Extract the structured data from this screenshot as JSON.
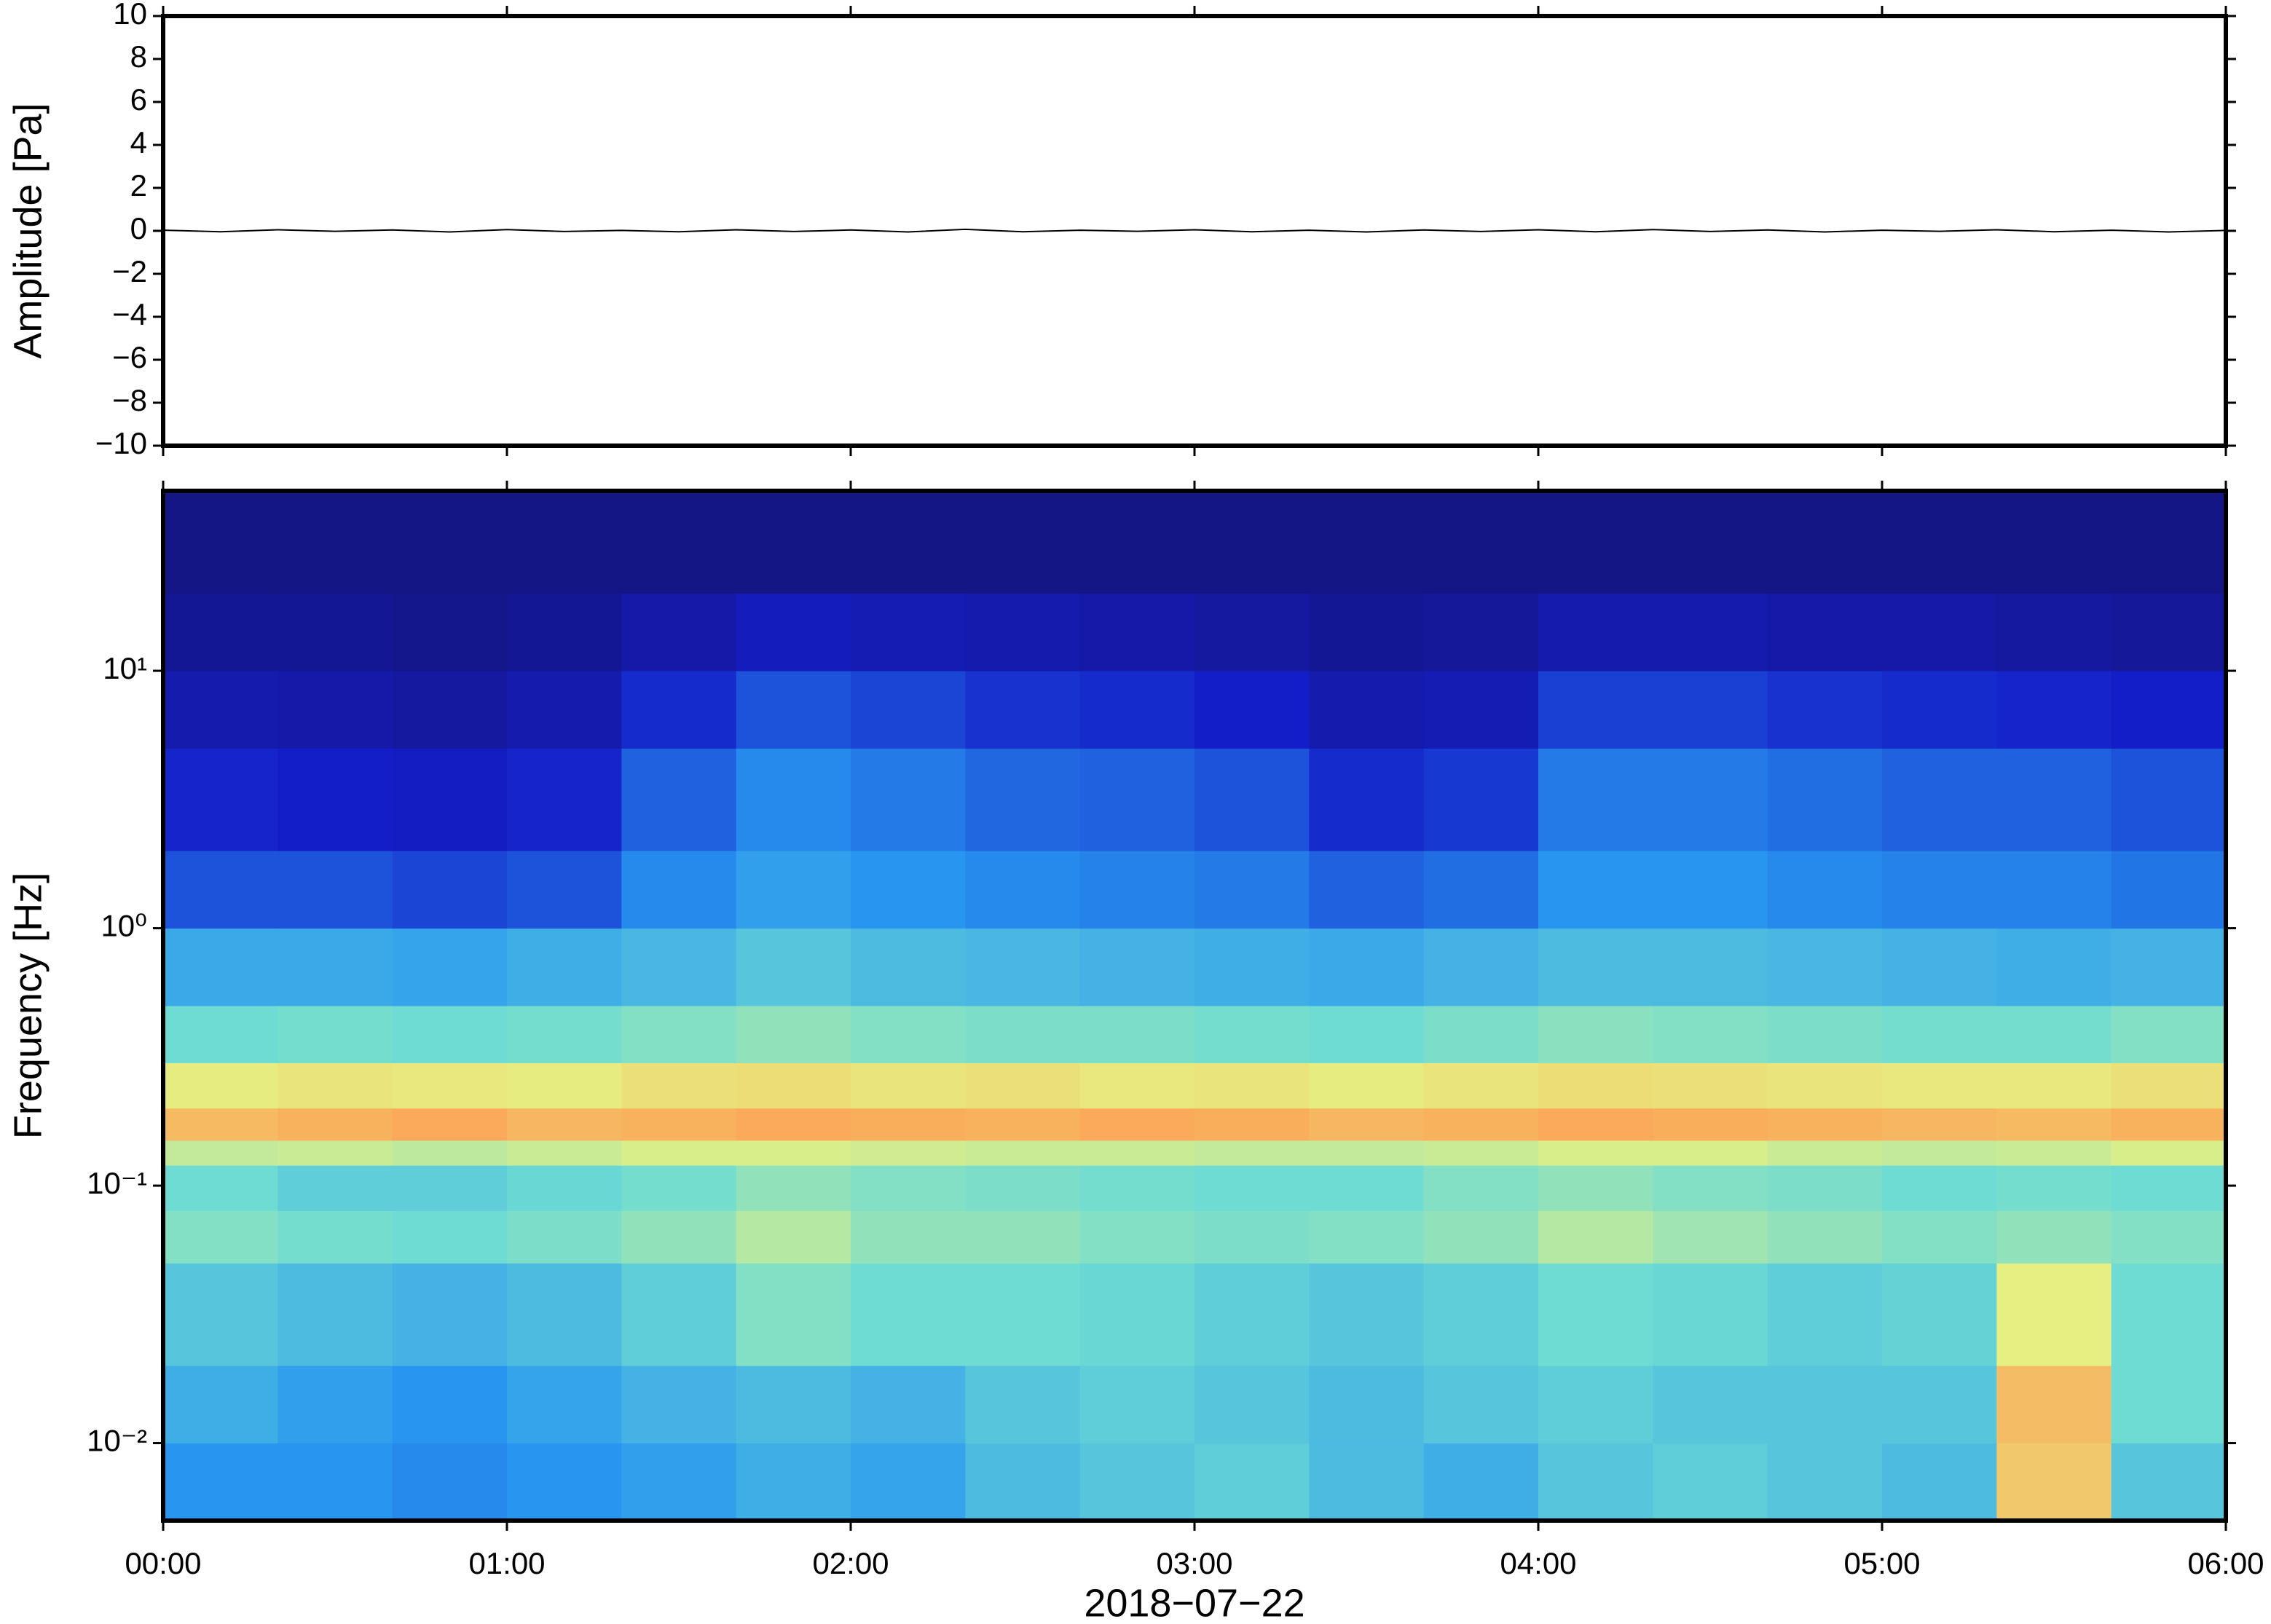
{
  "chart_data": [
    {
      "type": "line",
      "y_label": "Amplitude [Pa]",
      "x": [
        0,
        10,
        20,
        30,
        40,
        50,
        60,
        70,
        80,
        90,
        100,
        110,
        120,
        130,
        140,
        150,
        160,
        170,
        180,
        190,
        200,
        210,
        220,
        230,
        240,
        250,
        260,
        270,
        280,
        290,
        300,
        310,
        320,
        330,
        340,
        350,
        360
      ],
      "series": [
        {
          "color": "#000000",
          "values": [
            0.03,
            -0.04,
            0.05,
            -0.02,
            0.04,
            -0.05,
            0.06,
            -0.03,
            0.02,
            -0.04,
            0.05,
            -0.03,
            0.04,
            -0.05,
            0.07,
            -0.04,
            0.03,
            -0.02,
            0.05,
            -0.04,
            0.03,
            -0.05,
            0.04,
            -0.03,
            0.05,
            -0.04,
            0.06,
            -0.03,
            0.04,
            -0.05,
            0.03,
            -0.02,
            0.05,
            -0.04,
            0.03,
            -0.05,
            0.02
          ]
        }
      ],
      "xlim": [
        0,
        360
      ],
      "xticks": [
        {
          "value": 0,
          "label": "00:00"
        },
        {
          "value": 60,
          "label": "01:00"
        },
        {
          "value": 120,
          "label": "02:00"
        },
        {
          "value": 180,
          "label": "03:00"
        },
        {
          "value": 240,
          "label": "04:00"
        },
        {
          "value": 300,
          "label": "05:00"
        },
        {
          "value": 360,
          "label": "06:00"
        }
      ],
      "ylim": [
        -10,
        10
      ],
      "yticks": [
        {
          "value": -10,
          "label": "−10"
        },
        {
          "value": -8,
          "label": "−8"
        },
        {
          "value": -6,
          "label": "−6"
        },
        {
          "value": -4,
          "label": "−4"
        },
        {
          "value": -2,
          "label": "−2"
        },
        0,
        2,
        4,
        6,
        8,
        10
      ]
    },
    {
      "type": "heatmap",
      "y_label": "Frequency [Hz]",
      "x_label": "2018−07−22",
      "colormap": "jet",
      "log_y": true,
      "x_bins": [
        0,
        20,
        40,
        60,
        80,
        100,
        120,
        140,
        160,
        180,
        200,
        220,
        240,
        260,
        280,
        300,
        320,
        340,
        360
      ],
      "y_bins": [
        0.005,
        0.01,
        0.02,
        0.05,
        0.08,
        0.12,
        0.15,
        0.2,
        0.3,
        0.5,
        1,
        2,
        5,
        10,
        20,
        50
      ],
      "z": [
        [
          0.3,
          0.3,
          0.28,
          0.3,
          0.32,
          0.35,
          0.33,
          0.38,
          0.4,
          0.42,
          0.38,
          0.35,
          0.4,
          0.42,
          0.4,
          0.38,
          0.72,
          0.4
        ],
        [
          0.35,
          0.32,
          0.3,
          0.33,
          0.36,
          0.38,
          0.36,
          0.4,
          0.42,
          0.4,
          0.38,
          0.4,
          0.42,
          0.4,
          0.4,
          0.4,
          0.75,
          0.45
        ],
        [
          0.4,
          0.38,
          0.36,
          0.38,
          0.42,
          0.48,
          0.45,
          0.45,
          0.44,
          0.42,
          0.4,
          0.42,
          0.45,
          0.44,
          0.42,
          0.43,
          0.62,
          0.45
        ],
        [
          0.48,
          0.46,
          0.45,
          0.47,
          0.5,
          0.55,
          0.5,
          0.5,
          0.48,
          0.47,
          0.48,
          0.5,
          0.55,
          0.52,
          0.5,
          0.48,
          0.5,
          0.48
        ],
        [
          0.45,
          0.42,
          0.42,
          0.44,
          0.46,
          0.5,
          0.48,
          0.47,
          0.46,
          0.45,
          0.45,
          0.48,
          0.5,
          0.48,
          0.47,
          0.45,
          0.46,
          0.45
        ],
        [
          0.57,
          0.58,
          0.56,
          0.58,
          0.6,
          0.6,
          0.59,
          0.58,
          0.58,
          0.57,
          0.57,
          0.58,
          0.6,
          0.6,
          0.58,
          0.57,
          0.58,
          0.6
        ],
        [
          0.76,
          0.78,
          0.8,
          0.77,
          0.78,
          0.8,
          0.79,
          0.78,
          0.8,
          0.79,
          0.77,
          0.78,
          0.8,
          0.79,
          0.78,
          0.77,
          0.76,
          0.78
        ],
        [
          0.63,
          0.65,
          0.64,
          0.63,
          0.66,
          0.67,
          0.65,
          0.66,
          0.64,
          0.65,
          0.63,
          0.65,
          0.67,
          0.66,
          0.65,
          0.64,
          0.64,
          0.66
        ],
        [
          0.45,
          0.46,
          0.45,
          0.46,
          0.48,
          0.5,
          0.48,
          0.47,
          0.47,
          0.46,
          0.45,
          0.47,
          0.49,
          0.48,
          0.47,
          0.46,
          0.46,
          0.48
        ],
        [
          0.34,
          0.34,
          0.33,
          0.35,
          0.37,
          0.4,
          0.38,
          0.37,
          0.36,
          0.35,
          0.34,
          0.36,
          0.38,
          0.38,
          0.37,
          0.36,
          0.35,
          0.36
        ],
        [
          0.2,
          0.2,
          0.18,
          0.2,
          0.28,
          0.32,
          0.3,
          0.28,
          0.27,
          0.26,
          0.22,
          0.24,
          0.3,
          0.3,
          0.28,
          0.27,
          0.27,
          0.25
        ],
        [
          0.13,
          0.12,
          0.11,
          0.13,
          0.22,
          0.28,
          0.26,
          0.23,
          0.22,
          0.2,
          0.14,
          0.16,
          0.26,
          0.26,
          0.24,
          0.22,
          0.22,
          0.2
        ],
        [
          0.08,
          0.07,
          0.06,
          0.08,
          0.14,
          0.2,
          0.18,
          0.15,
          0.14,
          0.12,
          0.08,
          0.09,
          0.17,
          0.17,
          0.15,
          0.14,
          0.13,
          0.12
        ],
        [
          0.04,
          0.04,
          0.03,
          0.04,
          0.07,
          0.1,
          0.09,
          0.08,
          0.07,
          0.06,
          0.04,
          0.05,
          0.08,
          0.08,
          0.07,
          0.07,
          0.06,
          0.05
        ],
        [
          0.02,
          0.02,
          0.02,
          0.02,
          0.02,
          0.02,
          0.02,
          0.02,
          0.02,
          0.02,
          0.02,
          0.02,
          0.02,
          0.02,
          0.02,
          0.02,
          0.02,
          0.02
        ]
      ],
      "xlim": [
        0,
        360
      ],
      "xticks": [
        {
          "value": 0,
          "label": "00:00"
        },
        {
          "value": 60,
          "label": "01:00"
        },
        {
          "value": 120,
          "label": "02:00"
        },
        {
          "value": 180,
          "label": "03:00"
        },
        {
          "value": 240,
          "label": "04:00"
        },
        {
          "value": 300,
          "label": "05:00"
        },
        {
          "value": 360,
          "label": "06:00"
        }
      ],
      "ylim": [
        0.005,
        50
      ],
      "yticks": [
        {
          "value": 0.01,
          "label": "10⁻²"
        },
        {
          "value": 0.1,
          "label": "10⁻¹"
        },
        {
          "value": 1,
          "label": "10⁰"
        },
        {
          "value": 10,
          "label": "10¹"
        }
      ]
    }
  ]
}
